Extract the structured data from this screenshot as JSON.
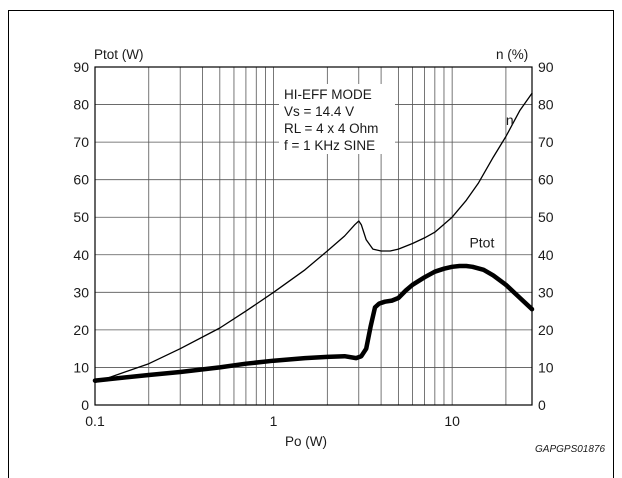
{
  "chart_data": {
    "type": "line",
    "xscale": "log",
    "xlim": [
      0.1,
      28
    ],
    "ylim_left": [
      0,
      90
    ],
    "ylim_right": [
      0,
      90
    ],
    "ylabel_left": "Ptot (W)",
    "ylabel_right": "n (%)",
    "xlabel": "Po (W)",
    "x_ticks": [
      {
        "value": 0.1,
        "label": "0.1"
      },
      {
        "value": 1,
        "label": "1"
      },
      {
        "value": 10,
        "label": "10"
      }
    ],
    "y_ticks": [
      0,
      10,
      20,
      30,
      40,
      50,
      60,
      70,
      80,
      90
    ],
    "grid": true,
    "annotation": [
      "HI-EFF MODE",
      "Vs = 14.4 V",
      "RL = 4 x 4 Ohm",
      "f = 1 KHz SINE"
    ],
    "code": "GAPGPS01876",
    "series": [
      {
        "name": "n",
        "axis": "right",
        "weight": "thin",
        "x": [
          0.1,
          0.2,
          0.3,
          0.5,
          0.7,
          1.0,
          1.5,
          2.0,
          2.5,
          2.85,
          3.0,
          3.1,
          3.3,
          3.6,
          4.0,
          4.5,
          5.0,
          6.0,
          7.0,
          8.0,
          10,
          12,
          14,
          17,
          20,
          24,
          28
        ],
        "values": [
          6,
          11,
          15,
          20.5,
          25,
          30,
          36,
          41,
          45,
          48,
          49,
          48,
          44,
          41.5,
          41,
          41,
          41.5,
          43,
          44.5,
          46,
          50,
          54.5,
          59,
          66,
          71.5,
          78.5,
          83
        ]
      },
      {
        "name": "Ptot",
        "axis": "left",
        "weight": "thick",
        "x": [
          0.1,
          0.2,
          0.3,
          0.5,
          0.7,
          1.0,
          1.5,
          2.0,
          2.5,
          2.9,
          3.1,
          3.3,
          3.5,
          3.7,
          3.9,
          4.2,
          4.6,
          5.0,
          5.5,
          6.0,
          7.0,
          8.0,
          9.0,
          10,
          11,
          12,
          13,
          15,
          17,
          20,
          24,
          28
        ],
        "values": [
          6.5,
          8,
          8.8,
          10,
          11,
          11.8,
          12.5,
          12.8,
          13,
          12.5,
          13,
          15,
          21,
          26,
          27,
          27.5,
          27.8,
          28.5,
          30.5,
          32,
          34,
          35.5,
          36.3,
          36.8,
          37,
          37,
          36.8,
          36,
          34.5,
          32,
          28.5,
          25.5
        ]
      }
    ],
    "series_labels": [
      {
        "series": "n",
        "text": "n",
        "x": 20,
        "y": 74.5
      },
      {
        "series": "Ptot",
        "text": "Ptot",
        "x": 12.5,
        "y": 42
      }
    ]
  }
}
